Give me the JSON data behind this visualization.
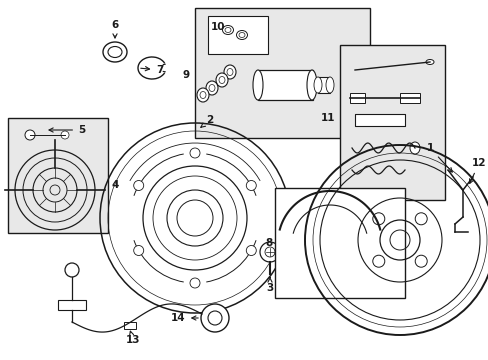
{
  "bg_color": "#ffffff",
  "line_color": "#1a1a1a",
  "box_fill": "#e8e8e8",
  "figsize": [
    4.89,
    3.6
  ],
  "dpi": 100
}
